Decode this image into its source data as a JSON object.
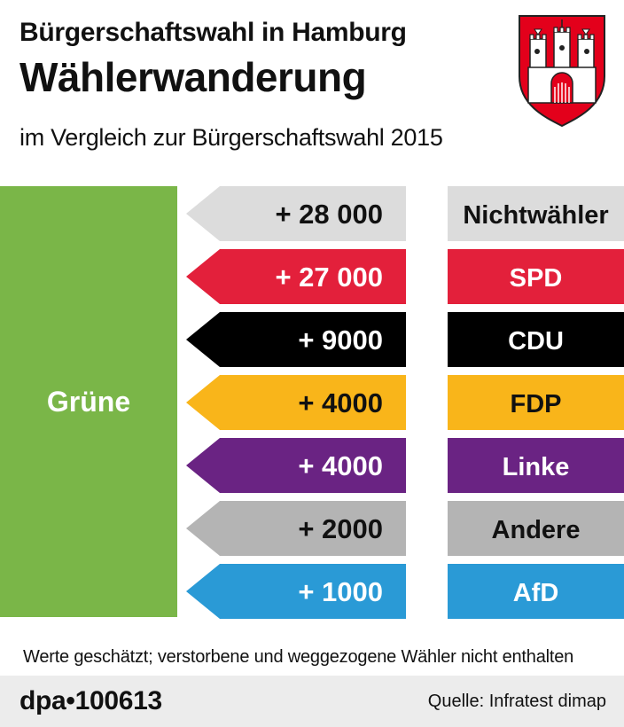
{
  "header": {
    "title": "Bürgerschaftswahl in Hamburg",
    "headline": "Wählerwanderung",
    "subtitle": "im Vergleich zur Bürgerschaftswahl 2015"
  },
  "crest_icon": "hamburg-coat-of-arms-icon",
  "chart_data": {
    "type": "bar",
    "target": "Grüne",
    "categories": [
      "Nichtwähler",
      "SPD",
      "CDU",
      "FDP",
      "Linke",
      "Andere",
      "AfD"
    ],
    "values": [
      28000,
      27000,
      9000,
      4000,
      4000,
      2000,
      1000
    ],
    "value_labels": [
      "+ 28 000",
      "+ 27 000",
      "+ 9000",
      "+ 4000",
      "+ 4000",
      "+ 2000",
      "+ 1000"
    ],
    "colors": [
      "#dcdcdc",
      "#e3203b",
      "#000000",
      "#f9b51a",
      "#6a2383",
      "#b4b4b4",
      "#2a9ad6"
    ],
    "text_colors": [
      "#111111",
      "#ffffff",
      "#ffffff",
      "#111111",
      "#ffffff",
      "#111111",
      "#ffffff"
    ],
    "target_color": "#7ab648"
  },
  "footnote": "Werte geschätzt; verstorbene und weggezogene Wähler nicht enthalten",
  "footer": {
    "agency": "dpa•100613",
    "source": "Quelle: Infratest dimap"
  }
}
